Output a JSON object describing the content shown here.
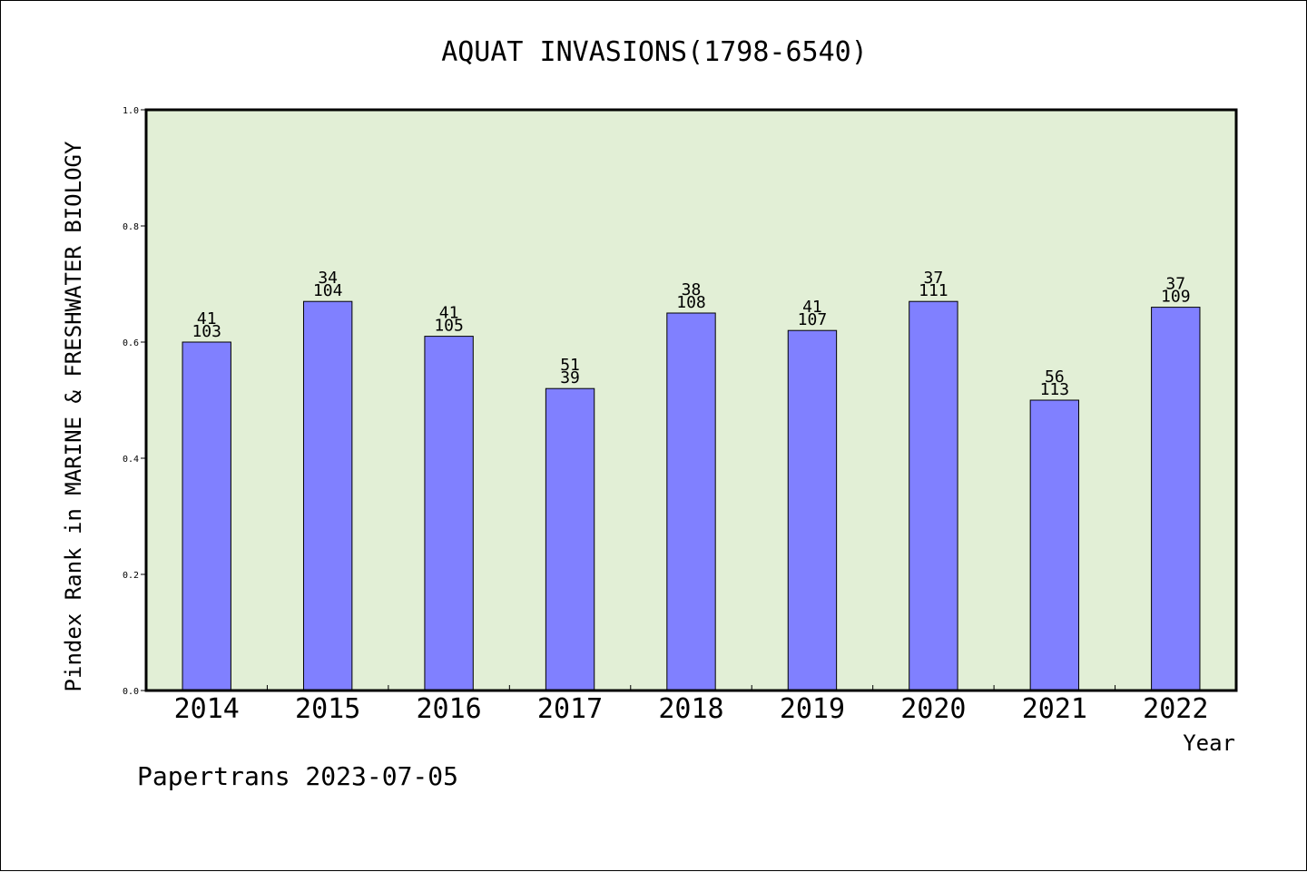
{
  "chart_data": {
    "type": "bar",
    "title": "AQUAT INVASIONS(1798-6540)",
    "xlabel": "Year",
    "ylabel": "Pindex Rank in MARINE & FRESHWATER BIOLOGY",
    "categories": [
      "2014",
      "2015",
      "2016",
      "2017",
      "2018",
      "2019",
      "2020",
      "2021",
      "2022"
    ],
    "values": [
      0.6,
      0.67,
      0.61,
      0.52,
      0.65,
      0.62,
      0.67,
      0.5,
      0.66
    ],
    "rank_labels": [
      "41",
      "34",
      "41",
      "51",
      "38",
      "41",
      "37",
      "56",
      "37"
    ],
    "count_labels": [
      "103",
      "104",
      "105",
      "39",
      "108",
      "107",
      "111",
      "113",
      "109"
    ],
    "ylim": [
      0,
      1.0
    ],
    "yticks": [
      "0.0",
      "0.2",
      "0.4",
      "0.6",
      "0.8",
      "1.0"
    ],
    "grid": false,
    "colors": {
      "plot_background": "#e2efd6",
      "bar_fill": "#8080ff",
      "bar_stroke": "#000000"
    }
  },
  "footer": {
    "text": "Papertrans 2023-07-05"
  }
}
